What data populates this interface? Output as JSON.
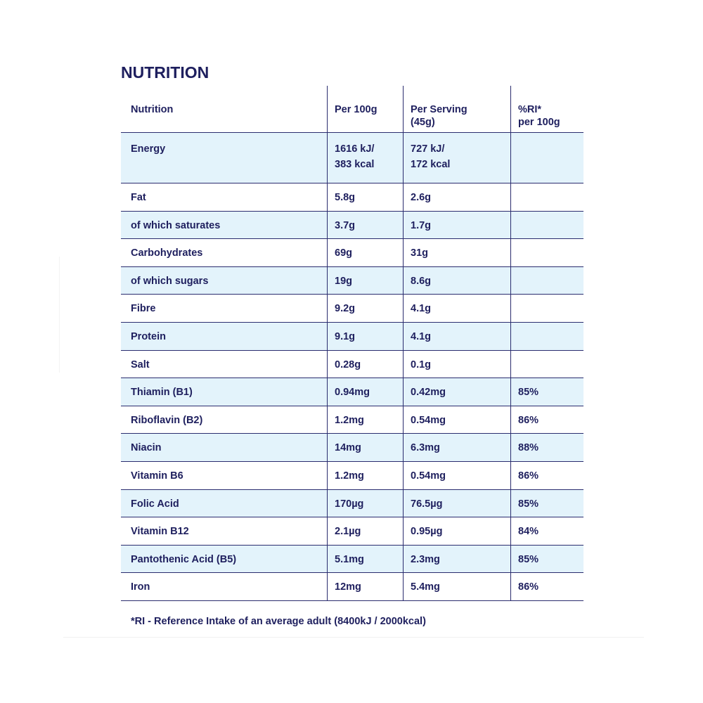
{
  "title": "NUTRITION",
  "columns": {
    "nutrition": "Nutrition",
    "per100": "Per 100g",
    "perServing": [
      "Per Serving",
      "(45g)"
    ],
    "ri": [
      "%RI*",
      "per 100g"
    ]
  },
  "energy": {
    "name": "Energy",
    "per100": [
      "1616 kJ/",
      "383 kcal"
    ],
    "perServing": [
      "727 kJ/",
      "172 kcal"
    ],
    "ri": ""
  },
  "rows": [
    {
      "name": "Fat",
      "per100": "5.8g",
      "perServing": "2.6g",
      "ri": ""
    },
    {
      "name": "of which saturates",
      "per100": "3.7g",
      "perServing": "1.7g",
      "ri": ""
    },
    {
      "name": "Carbohydrates",
      "per100": "69g",
      "perServing": "31g",
      "ri": ""
    },
    {
      "name": "of which sugars",
      "per100": "19g",
      "perServing": "8.6g",
      "ri": ""
    },
    {
      "name": "Fibre",
      "per100": "9.2g",
      "perServing": "4.1g",
      "ri": ""
    },
    {
      "name": "Protein",
      "per100": "9.1g",
      "perServing": "4.1g",
      "ri": ""
    },
    {
      "name": "Salt",
      "per100": "0.28g",
      "perServing": "0.1g",
      "ri": ""
    },
    {
      "name": "Thiamin (B1)",
      "per100": "0.94mg",
      "perServing": "0.42mg",
      "ri": "85%"
    },
    {
      "name": "Riboflavin (B2)",
      "per100": "1.2mg",
      "perServing": "0.54mg",
      "ri": "86%"
    },
    {
      "name": "Niacin",
      "per100": "14mg",
      "perServing": "6.3mg",
      "ri": "88%"
    },
    {
      "name": "Vitamin B6",
      "per100": "1.2mg",
      "perServing": "0.54mg",
      "ri": "86%"
    },
    {
      "name": "Folic Acid",
      "per100": "170µg",
      "perServing": "76.5µg",
      "ri": "85%"
    },
    {
      "name": "Vitamin B12",
      "per100": "2.1µg",
      "perServing": "0.95µg",
      "ri": "84%"
    },
    {
      "name": "Pantothenic Acid (B5)",
      "per100": "5.1mg",
      "perServing": "2.3mg",
      "ri": "85%"
    },
    {
      "name": "Iron",
      "per100": "12mg",
      "perServing": "5.4mg",
      "ri": "86%"
    }
  ],
  "footnote": "*RI - Reference Intake of an average adult (8400kJ / 2000kcal)",
  "colors": {
    "text": "#1e1f5e",
    "rule": "#2a2c6e",
    "shade": "#e3f3fb"
  }
}
